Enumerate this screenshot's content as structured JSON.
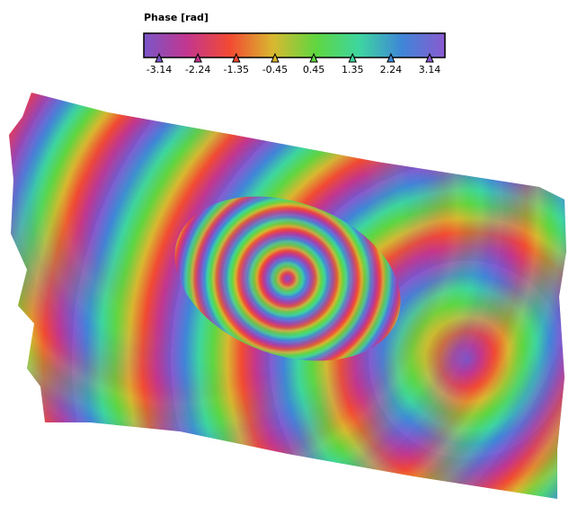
{
  "colorbar": {
    "title": "Phase [rad]",
    "ticks": [
      -3.14,
      -2.24,
      -1.35,
      -0.45,
      0.45,
      1.35,
      2.24,
      3.14
    ],
    "colors": [
      "#7a55c8",
      "#c2368f",
      "#f24a32",
      "#d9b830",
      "#5fd640",
      "#3ed6a0",
      "#3f86d8",
      "#8a5ad0"
    ]
  }
}
